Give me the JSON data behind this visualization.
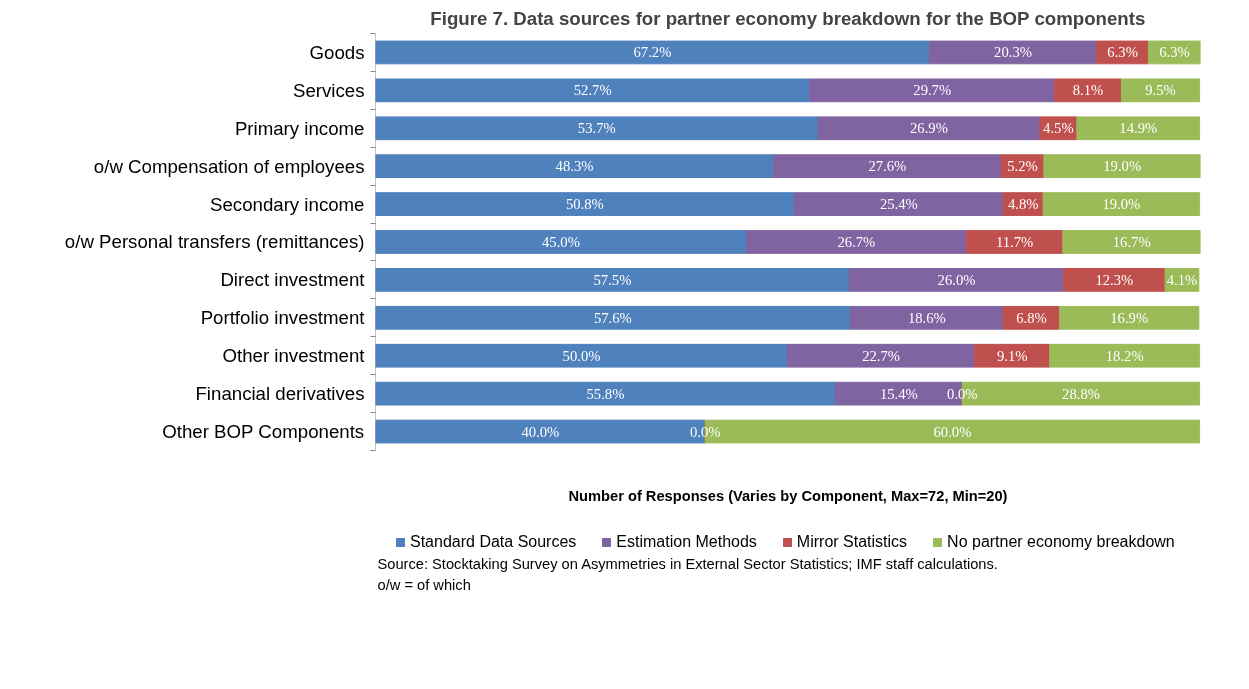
{
  "chart_data": {
    "type": "bar",
    "orientation": "horizontal",
    "stacked": true,
    "title": "Figure 7. Data sources for partner economy breakdown for the BOP components",
    "xlabel": "Number of Responses (Varies by Component, Max=72, Min=20)",
    "categories": [
      "Goods",
      "Services",
      "Primary income",
      "o/w Compensation of employees",
      "Secondary income",
      "o/w Personal transfers (remittances)",
      "Direct investment",
      "Portfolio investment",
      "Other investment",
      "Financial derivatives",
      "Other BOP Components"
    ],
    "series": [
      {
        "name": "Standard Data Sources",
        "color": "#4f81bd",
        "values": [
          67.2,
          52.7,
          53.7,
          48.3,
          50.8,
          45.0,
          57.5,
          57.6,
          50.0,
          55.8,
          40.0
        ],
        "value_labels": [
          "67.2%",
          "52.7%",
          "53.7%",
          "48.3%",
          "50.8%",
          "45.0%",
          "57.5%",
          "57.6%",
          "50.0%",
          "55.8%",
          "40.0%"
        ]
      },
      {
        "name": "Estimation Methods",
        "color": "#8064a2",
        "values": [
          20.3,
          29.7,
          26.9,
          27.6,
          25.4,
          26.7,
          26.0,
          18.6,
          22.7,
          15.4,
          0.0
        ],
        "value_labels": [
          "20.3%",
          "29.7%",
          "26.9%",
          "27.6%",
          "25.4%",
          "26.7%",
          "26.0%",
          "18.6%",
          "22.7%",
          "15.4%",
          "0.0%"
        ]
      },
      {
        "name": "Mirror Statistics",
        "color": "#c0504d",
        "values": [
          6.3,
          8.1,
          4.5,
          5.2,
          4.8,
          11.7,
          12.3,
          6.8,
          9.1,
          0.0,
          0.0
        ],
        "value_labels": [
          "6.3%",
          "8.1%",
          "4.5%",
          "5.2%",
          "4.8%",
          "11.7%",
          "12.3%",
          "6.8%",
          "9.1%",
          "0.0%",
          null
        ]
      },
      {
        "name": "No partner economy breakdown",
        "color": "#9bbb59",
        "values": [
          6.3,
          9.5,
          14.9,
          19.0,
          19.0,
          16.7,
          4.1,
          16.9,
          18.2,
          28.8,
          60.0
        ],
        "value_labels": [
          "6.3%",
          "9.5%",
          "14.9%",
          "19.0%",
          "19.0%",
          "16.7%",
          "4.1%",
          "16.9%",
          "18.2%",
          "28.8%",
          "60.0%"
        ]
      }
    ],
    "tick_labels": "y",
    "grid": false,
    "legend": "bottom",
    "annotations": [
      "Source: Stocktaking Survey on Asymmetries in External Sector Statistics; IMF staff calculations.",
      "o/w = of which"
    ]
  }
}
